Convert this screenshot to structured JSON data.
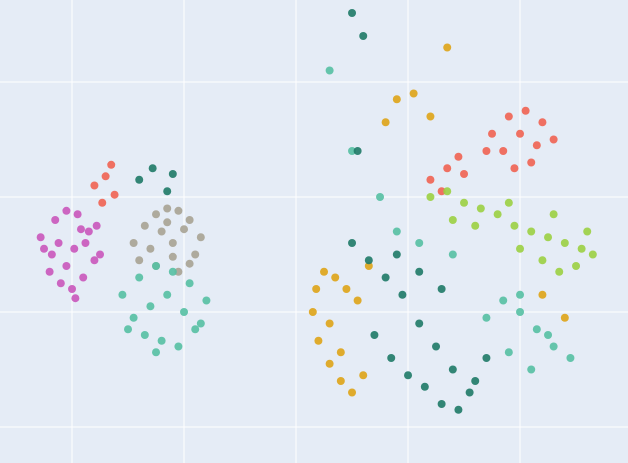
{
  "chart_data": {
    "type": "scatter",
    "xlim": [
      -0.643,
      4.964
    ],
    "ylim": [
      -1.313,
      2.713
    ],
    "xticks": [
      0,
      1,
      2,
      3,
      4
    ],
    "yticks": [
      -1,
      0,
      1,
      2
    ],
    "grid": true,
    "series": [
      {
        "color": "#c957bb",
        "x": [
          -0.25,
          -0.15,
          -0.05,
          0.05,
          0.15,
          0.25,
          -0.2,
          -0.1,
          0,
          0.1,
          0.2,
          -0.28,
          -0.12,
          0.02,
          0.12,
          0.22,
          -0.05,
          0.08,
          -0.18,
          0.03
        ],
        "values": [
          0.55,
          0.8,
          0.88,
          0.85,
          0.7,
          0.5,
          0.35,
          0.25,
          0.2,
          0.3,
          0.45,
          0.65,
          0.6,
          0.55,
          0.6,
          0.75,
          0.4,
          0.72,
          0.5,
          0.12
        ]
      },
      {
        "color": "#ef6352",
        "x": [
          0.2,
          0.3,
          0.38,
          0.27,
          0.35,
          3.2,
          3.35,
          3.5,
          3.3,
          3.45,
          3.75,
          3.9,
          4.05,
          4.2,
          4.3,
          3.85,
          4.0,
          4.15,
          4.1,
          3.95,
          3.7
        ],
        "values": [
          1.1,
          1.18,
          1.02,
          0.95,
          1.28,
          1.15,
          1.25,
          1.2,
          1.05,
          1.35,
          1.55,
          1.7,
          1.75,
          1.65,
          1.5,
          1.4,
          1.55,
          1.45,
          1.3,
          1.25,
          1.4
        ]
      },
      {
        "color": "#a7a394",
        "x": [
          0.55,
          0.65,
          0.75,
          0.85,
          0.95,
          1.05,
          1.15,
          0.7,
          0.8,
          0.9,
          1.0,
          1.1,
          0.6,
          0.75,
          0.9,
          1.05,
          0.85,
          0.95
        ],
        "values": [
          0.6,
          0.75,
          0.85,
          0.9,
          0.88,
          0.8,
          0.65,
          0.55,
          0.7,
          0.6,
          0.72,
          0.5,
          0.45,
          0.4,
          0.48,
          0.42,
          0.78,
          0.35
        ]
      },
      {
        "color": "#55c0a3",
        "x": [
          0.45,
          0.6,
          0.75,
          0.9,
          1.05,
          1.2,
          0.55,
          0.7,
          0.85,
          1.0,
          1.15,
          0.65,
          0.8,
          0.95,
          1.1,
          0.5,
          0.75,
          3.7,
          3.85,
          4.0,
          4.15,
          4.3,
          4.45,
          3.9,
          4.1,
          4.25,
          4.0,
          2.75,
          2.9,
          3.1,
          3.4,
          2.5,
          2.3
        ],
        "values": [
          0.15,
          0.3,
          0.4,
          0.35,
          0.25,
          0.1,
          -0.05,
          0.05,
          0.15,
          0.0,
          -0.1,
          -0.2,
          -0.25,
          -0.3,
          -0.15,
          -0.15,
          -0.35,
          -0.05,
          0.1,
          0.0,
          -0.15,
          -0.3,
          -0.4,
          -0.35,
          -0.5,
          -0.2,
          0.15,
          1.0,
          0.7,
          0.6,
          0.5,
          1.4,
          2.1
        ]
      },
      {
        "color": "#dea417",
        "x": [
          2.15,
          2.2,
          2.3,
          2.4,
          2.5,
          2.6,
          2.18,
          2.25,
          2.35,
          2.45,
          2.55,
          2.3,
          2.4,
          2.65,
          2.9,
          3.05,
          3.2,
          3.35,
          2.8,
          4.2,
          4.4
        ],
        "values": [
          0.0,
          -0.25,
          -0.45,
          -0.6,
          -0.7,
          -0.55,
          0.2,
          0.35,
          0.3,
          0.2,
          0.1,
          -0.1,
          -0.35,
          0.4,
          1.85,
          1.9,
          1.7,
          2.3,
          1.65,
          0.15,
          -0.05
        ]
      },
      {
        "color": "#9bd042",
        "x": [
          3.2,
          3.35,
          3.5,
          3.65,
          3.8,
          3.95,
          4.1,
          4.25,
          4.4,
          4.55,
          4.65,
          4.0,
          4.2,
          4.35,
          4.5,
          3.6,
          3.9,
          4.3,
          3.4,
          4.6
        ],
        "values": [
          1.0,
          1.05,
          0.95,
          0.9,
          0.85,
          0.75,
          0.7,
          0.65,
          0.6,
          0.55,
          0.5,
          0.55,
          0.45,
          0.35,
          0.4,
          0.75,
          0.95,
          0.85,
          0.8,
          0.7
        ]
      },
      {
        "color": "#1e7a67",
        "x": [
          0.6,
          0.72,
          0.85,
          0.9,
          2.5,
          2.65,
          2.8,
          2.95,
          3.1,
          3.25,
          3.4,
          3.55,
          2.7,
          2.85,
          3.0,
          3.15,
          3.3,
          3.45,
          3.6,
          2.9,
          3.1,
          3.3,
          2.55,
          3.7,
          2.6,
          2.5
        ],
        "values": [
          1.15,
          1.25,
          1.05,
          1.2,
          0.6,
          0.45,
          0.3,
          0.15,
          -0.1,
          -0.3,
          -0.5,
          -0.7,
          -0.2,
          -0.4,
          -0.55,
          -0.65,
          -0.8,
          -0.85,
          -0.6,
          0.5,
          0.35,
          0.2,
          1.4,
          -0.4,
          2.4,
          2.6
        ]
      }
    ]
  }
}
